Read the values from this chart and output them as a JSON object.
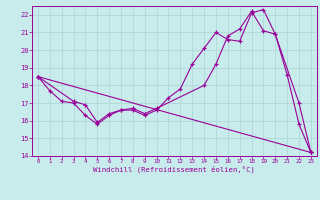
{
  "title": "",
  "xlabel": "Windchill (Refroidissement éolien,°C)",
  "bg_color": "#c8ecec",
  "grid_color": "#b0d8d8",
  "line_color": "#990099",
  "xlim": [
    -0.5,
    23.5
  ],
  "ylim": [
    14.0,
    22.5
  ],
  "xticks": [
    0,
    1,
    2,
    3,
    4,
    5,
    6,
    7,
    8,
    9,
    10,
    11,
    12,
    13,
    14,
    15,
    16,
    17,
    18,
    19,
    20,
    21,
    22,
    23
  ],
  "yticks": [
    14,
    15,
    16,
    17,
    18,
    19,
    20,
    21,
    22
  ],
  "line1_x": [
    0,
    1,
    2,
    3,
    4,
    5,
    6,
    7,
    8,
    9,
    10,
    11,
    12,
    13,
    14,
    15,
    16,
    17,
    18,
    19,
    20,
    21,
    22,
    23
  ],
  "line1_y": [
    18.5,
    17.7,
    17.1,
    17.0,
    16.3,
    15.8,
    16.3,
    16.6,
    16.6,
    16.3,
    16.6,
    17.3,
    17.8,
    19.2,
    20.1,
    21.0,
    20.6,
    20.5,
    22.1,
    22.3,
    20.9,
    18.6,
    15.8,
    14.2
  ],
  "line2_x": [
    0,
    3,
    4,
    5,
    6,
    7,
    8,
    9,
    10,
    14,
    15,
    16,
    17,
    18,
    19,
    20,
    22,
    23
  ],
  "line2_y": [
    18.5,
    17.1,
    16.9,
    15.9,
    16.4,
    16.6,
    16.7,
    16.4,
    16.7,
    18.0,
    19.2,
    20.8,
    21.2,
    22.2,
    21.1,
    20.9,
    17.0,
    14.2
  ],
  "line3_x": [
    0,
    23
  ],
  "line3_y": [
    18.5,
    14.2
  ]
}
